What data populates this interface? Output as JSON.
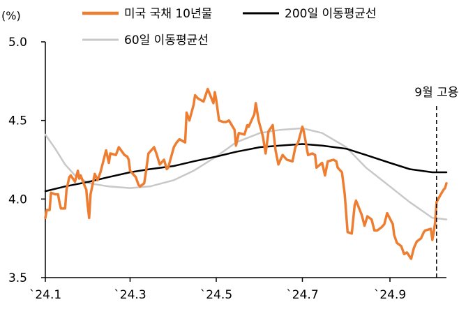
{
  "chart_data": {
    "type": "line",
    "title": "",
    "xlabel": "",
    "ylabel": "",
    "y_unit_label": "(%)",
    "ylim": [
      3.5,
      5.0
    ],
    "y_ticks": [
      "3.5",
      "4.0",
      "4.5",
      "5.0"
    ],
    "y_tick_values": [
      3.5,
      4.0,
      4.5,
      5.0
    ],
    "x_ticks": [
      "`24.1",
      "`24.3",
      "`24.5",
      "`24.7",
      "`24.9"
    ],
    "x_range": [
      "2024-01-01",
      "2024-10-11"
    ],
    "x_tick_dates": [
      "2024-01-01",
      "2024-03-01",
      "2024-05-01",
      "2024-07-01",
      "2024-09-01"
    ],
    "grid": false,
    "legend_position": "top",
    "annotation": {
      "label": "9월 고용",
      "date": "2024-10-04"
    },
    "colors": {
      "us10y": "#ED7D31",
      "ma200": "#000000",
      "ma60": "#C8C8C8"
    },
    "series": [
      {
        "name": "미국 국채 10년물",
        "points": [
          [
            "2024-01-01",
            3.88
          ],
          [
            "2024-01-02",
            3.93
          ],
          [
            "2024-01-04",
            3.93
          ],
          [
            "2024-01-05",
            4.04
          ],
          [
            "2024-01-08",
            4.03
          ],
          [
            "2024-01-10",
            4.03
          ],
          [
            "2024-01-11",
            3.98
          ],
          [
            "2024-01-12",
            3.94
          ],
          [
            "2024-01-15",
            3.94
          ],
          [
            "2024-01-16",
            4.06
          ],
          [
            "2024-01-17",
            4.1
          ],
          [
            "2024-01-18",
            4.14
          ],
          [
            "2024-01-19",
            4.15
          ],
          [
            "2024-01-22",
            4.11
          ],
          [
            "2024-01-24",
            4.18
          ],
          [
            "2024-01-25",
            4.13
          ],
          [
            "2024-01-26",
            4.15
          ],
          [
            "2024-01-29",
            4.08
          ],
          [
            "2024-01-30",
            4.06
          ],
          [
            "2024-01-31",
            3.96
          ],
          [
            "2024-02-01",
            3.88
          ],
          [
            "2024-02-02",
            4.03
          ],
          [
            "2024-02-05",
            4.16
          ],
          [
            "2024-02-07",
            4.12
          ],
          [
            "2024-02-09",
            4.17
          ],
          [
            "2024-02-13",
            4.31
          ],
          [
            "2024-02-15",
            4.23
          ],
          [
            "2024-02-16",
            4.29
          ],
          [
            "2024-02-20",
            4.28
          ],
          [
            "2024-02-22",
            4.33
          ],
          [
            "2024-02-26",
            4.28
          ],
          [
            "2024-02-28",
            4.27
          ],
          [
            "2024-02-29",
            4.25
          ],
          [
            "2024-03-01",
            4.18
          ],
          [
            "2024-03-05",
            4.14
          ],
          [
            "2024-03-07",
            4.09
          ],
          [
            "2024-03-08",
            4.08
          ],
          [
            "2024-03-11",
            4.1
          ],
          [
            "2024-03-12",
            4.16
          ],
          [
            "2024-03-14",
            4.29
          ],
          [
            "2024-03-18",
            4.33
          ],
          [
            "2024-03-20",
            4.28
          ],
          [
            "2024-03-22",
            4.22
          ],
          [
            "2024-03-25",
            4.25
          ],
          [
            "2024-03-27",
            4.19
          ],
          [
            "2024-03-28",
            4.2
          ],
          [
            "2024-04-01",
            4.33
          ],
          [
            "2024-04-03",
            4.36
          ],
          [
            "2024-04-05",
            4.38
          ],
          [
            "2024-04-09",
            4.36
          ],
          [
            "2024-04-10",
            4.55
          ],
          [
            "2024-04-12",
            4.5
          ],
          [
            "2024-04-15",
            4.6
          ],
          [
            "2024-04-16",
            4.66
          ],
          [
            "2024-04-18",
            4.64
          ],
          [
            "2024-04-22",
            4.62
          ],
          [
            "2024-04-25",
            4.7
          ],
          [
            "2024-04-29",
            4.61
          ],
          [
            "2024-04-30",
            4.68
          ],
          [
            "2024-05-01",
            4.63
          ],
          [
            "2024-05-03",
            4.5
          ],
          [
            "2024-05-06",
            4.49
          ],
          [
            "2024-05-08",
            4.49
          ],
          [
            "2024-05-10",
            4.5
          ],
          [
            "2024-05-14",
            4.44
          ],
          [
            "2024-05-15",
            4.34
          ],
          [
            "2024-05-17",
            4.42
          ],
          [
            "2024-05-21",
            4.41
          ],
          [
            "2024-05-23",
            4.47
          ],
          [
            "2024-05-24",
            4.46
          ],
          [
            "2024-05-28",
            4.54
          ],
          [
            "2024-05-29",
            4.61
          ],
          [
            "2024-05-31",
            4.5
          ],
          [
            "2024-06-03",
            4.4
          ],
          [
            "2024-06-05",
            4.29
          ],
          [
            "2024-06-07",
            4.43
          ],
          [
            "2024-06-10",
            4.47
          ],
          [
            "2024-06-12",
            4.31
          ],
          [
            "2024-06-14",
            4.22
          ],
          [
            "2024-06-17",
            4.28
          ],
          [
            "2024-06-20",
            4.25
          ],
          [
            "2024-06-24",
            4.24
          ],
          [
            "2024-06-26",
            4.33
          ],
          [
            "2024-06-28",
            4.36
          ],
          [
            "2024-07-01",
            4.46
          ],
          [
            "2024-07-02",
            4.43
          ],
          [
            "2024-07-05",
            4.28
          ],
          [
            "2024-07-08",
            4.29
          ],
          [
            "2024-07-10",
            4.28
          ],
          [
            "2024-07-11",
            4.2
          ],
          [
            "2024-07-15",
            4.23
          ],
          [
            "2024-07-17",
            4.15
          ],
          [
            "2024-07-19",
            4.24
          ],
          [
            "2024-07-23",
            4.25
          ],
          [
            "2024-07-25",
            4.24
          ],
          [
            "2024-07-26",
            4.2
          ],
          [
            "2024-07-29",
            4.17
          ],
          [
            "2024-07-31",
            4.03
          ],
          [
            "2024-08-02",
            3.79
          ],
          [
            "2024-08-05",
            3.78
          ],
          [
            "2024-08-07",
            3.96
          ],
          [
            "2024-08-08",
            3.99
          ],
          [
            "2024-08-12",
            3.9
          ],
          [
            "2024-08-14",
            3.83
          ],
          [
            "2024-08-16",
            3.89
          ],
          [
            "2024-08-19",
            3.87
          ],
          [
            "2024-08-21",
            3.8
          ],
          [
            "2024-08-23",
            3.8
          ],
          [
            "2024-08-26",
            3.82
          ],
          [
            "2024-08-28",
            3.84
          ],
          [
            "2024-08-30",
            3.91
          ],
          [
            "2024-09-03",
            3.84
          ],
          [
            "2024-09-04",
            3.77
          ],
          [
            "2024-09-06",
            3.72
          ],
          [
            "2024-09-09",
            3.7
          ],
          [
            "2024-09-11",
            3.65
          ],
          [
            "2024-09-13",
            3.66
          ],
          [
            "2024-09-16",
            3.62
          ],
          [
            "2024-09-18",
            3.69
          ],
          [
            "2024-09-20",
            3.73
          ],
          [
            "2024-09-23",
            3.75
          ],
          [
            "2024-09-25",
            3.79
          ],
          [
            "2024-09-26",
            3.8
          ],
          [
            "2024-09-30",
            3.81
          ],
          [
            "2024-10-01",
            3.74
          ],
          [
            "2024-10-02",
            3.79
          ],
          [
            "2024-10-03",
            3.85
          ],
          [
            "2024-10-04",
            3.98
          ],
          [
            "2024-10-07",
            4.03
          ],
          [
            "2024-10-09",
            4.06
          ],
          [
            "2024-10-10",
            4.07
          ],
          [
            "2024-10-11",
            4.1
          ]
        ]
      },
      {
        "name": "200일 이동평균선",
        "points": [
          [
            "2024-01-01",
            4.05
          ],
          [
            "2024-01-15",
            4.08
          ],
          [
            "2024-02-01",
            4.11
          ],
          [
            "2024-02-15",
            4.14
          ],
          [
            "2024-03-01",
            4.17
          ],
          [
            "2024-03-15",
            4.19
          ],
          [
            "2024-04-01",
            4.21
          ],
          [
            "2024-04-15",
            4.24
          ],
          [
            "2024-05-01",
            4.27
          ],
          [
            "2024-05-15",
            4.3
          ],
          [
            "2024-06-01",
            4.33
          ],
          [
            "2024-06-15",
            4.34
          ],
          [
            "2024-07-01",
            4.35
          ],
          [
            "2024-07-15",
            4.34
          ],
          [
            "2024-08-01",
            4.32
          ],
          [
            "2024-08-15",
            4.28
          ],
          [
            "2024-09-01",
            4.23
          ],
          [
            "2024-09-15",
            4.19
          ],
          [
            "2024-10-01",
            4.17
          ],
          [
            "2024-10-11",
            4.17
          ]
        ]
      },
      {
        "name": "60일 이동평균선",
        "points": [
          [
            "2024-01-01",
            4.41
          ],
          [
            "2024-01-08",
            4.32
          ],
          [
            "2024-01-15",
            4.22
          ],
          [
            "2024-01-22",
            4.15
          ],
          [
            "2024-02-01",
            4.1
          ],
          [
            "2024-02-15",
            4.08
          ],
          [
            "2024-03-01",
            4.07
          ],
          [
            "2024-03-15",
            4.08
          ],
          [
            "2024-04-01",
            4.12
          ],
          [
            "2024-04-15",
            4.18
          ],
          [
            "2024-05-01",
            4.27
          ],
          [
            "2024-05-15",
            4.36
          ],
          [
            "2024-06-01",
            4.42
          ],
          [
            "2024-06-15",
            4.44
          ],
          [
            "2024-07-01",
            4.45
          ],
          [
            "2024-07-15",
            4.42
          ],
          [
            "2024-08-01",
            4.33
          ],
          [
            "2024-08-15",
            4.2
          ],
          [
            "2024-09-01",
            4.08
          ],
          [
            "2024-09-15",
            3.98
          ],
          [
            "2024-10-01",
            3.88
          ],
          [
            "2024-10-11",
            3.87
          ]
        ]
      }
    ]
  }
}
